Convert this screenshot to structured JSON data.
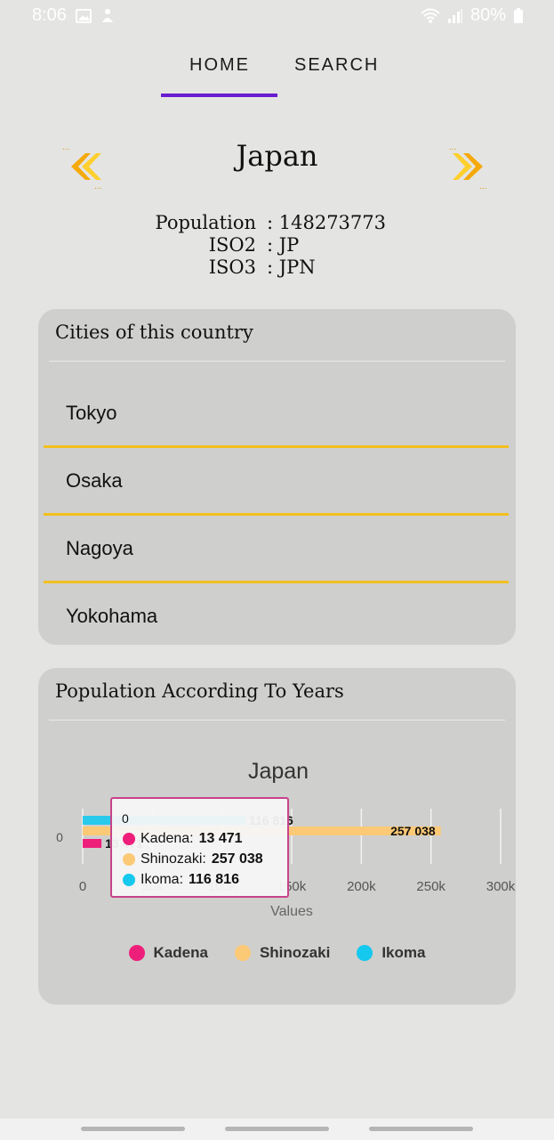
{
  "status": {
    "time": "8:06",
    "battery": "80%"
  },
  "tabs": [
    {
      "label": "HOME"
    },
    {
      "label": "SEARCH"
    }
  ],
  "country": {
    "name": "Japan",
    "population_label": "Population",
    "population_value": ": 148273773",
    "iso2_label": "ISO2",
    "iso2_value": ": JP",
    "iso3_label": "ISO3",
    "iso3_value": ": JPN"
  },
  "cities_card": {
    "title": "Cities of this country",
    "cities": [
      "Tokyo",
      "Osaka",
      "Nagoya",
      "Yokohama"
    ]
  },
  "chart_card": {
    "title": "Population According To Years"
  },
  "colors": {
    "accent": "#6a1bd1",
    "divider": "#f2c01e",
    "kadena": "#ee1f7a",
    "shinozaki": "#fcc977",
    "ikoma": "#15c8ee"
  },
  "chart_data": {
    "type": "bar",
    "orientation": "horizontal",
    "title": "Japan",
    "categories": [
      "0"
    ],
    "xlabel": "Values",
    "xlim": [
      0,
      300000
    ],
    "xticks": [
      "0",
      "50k",
      "100k",
      "150k",
      "200k",
      "250k",
      "300k"
    ],
    "series": [
      {
        "name": "Kadena",
        "values": [
          13471
        ],
        "label": "13 471",
        "color": "#ee1f7a"
      },
      {
        "name": "Shinozaki",
        "values": [
          257038
        ],
        "label": "257 038",
        "color": "#fcc977"
      },
      {
        "name": "Ikoma",
        "values": [
          116816
        ],
        "label": "116 816",
        "color": "#15c8ee"
      }
    ],
    "legend": "bottom",
    "tooltip": {
      "header": "0",
      "rows": [
        {
          "name": "Kadena:",
          "value": "13 471"
        },
        {
          "name": "Shinozaki:",
          "value": "257 038"
        },
        {
          "name": "Ikoma:",
          "value": "116 816"
        }
      ]
    }
  }
}
